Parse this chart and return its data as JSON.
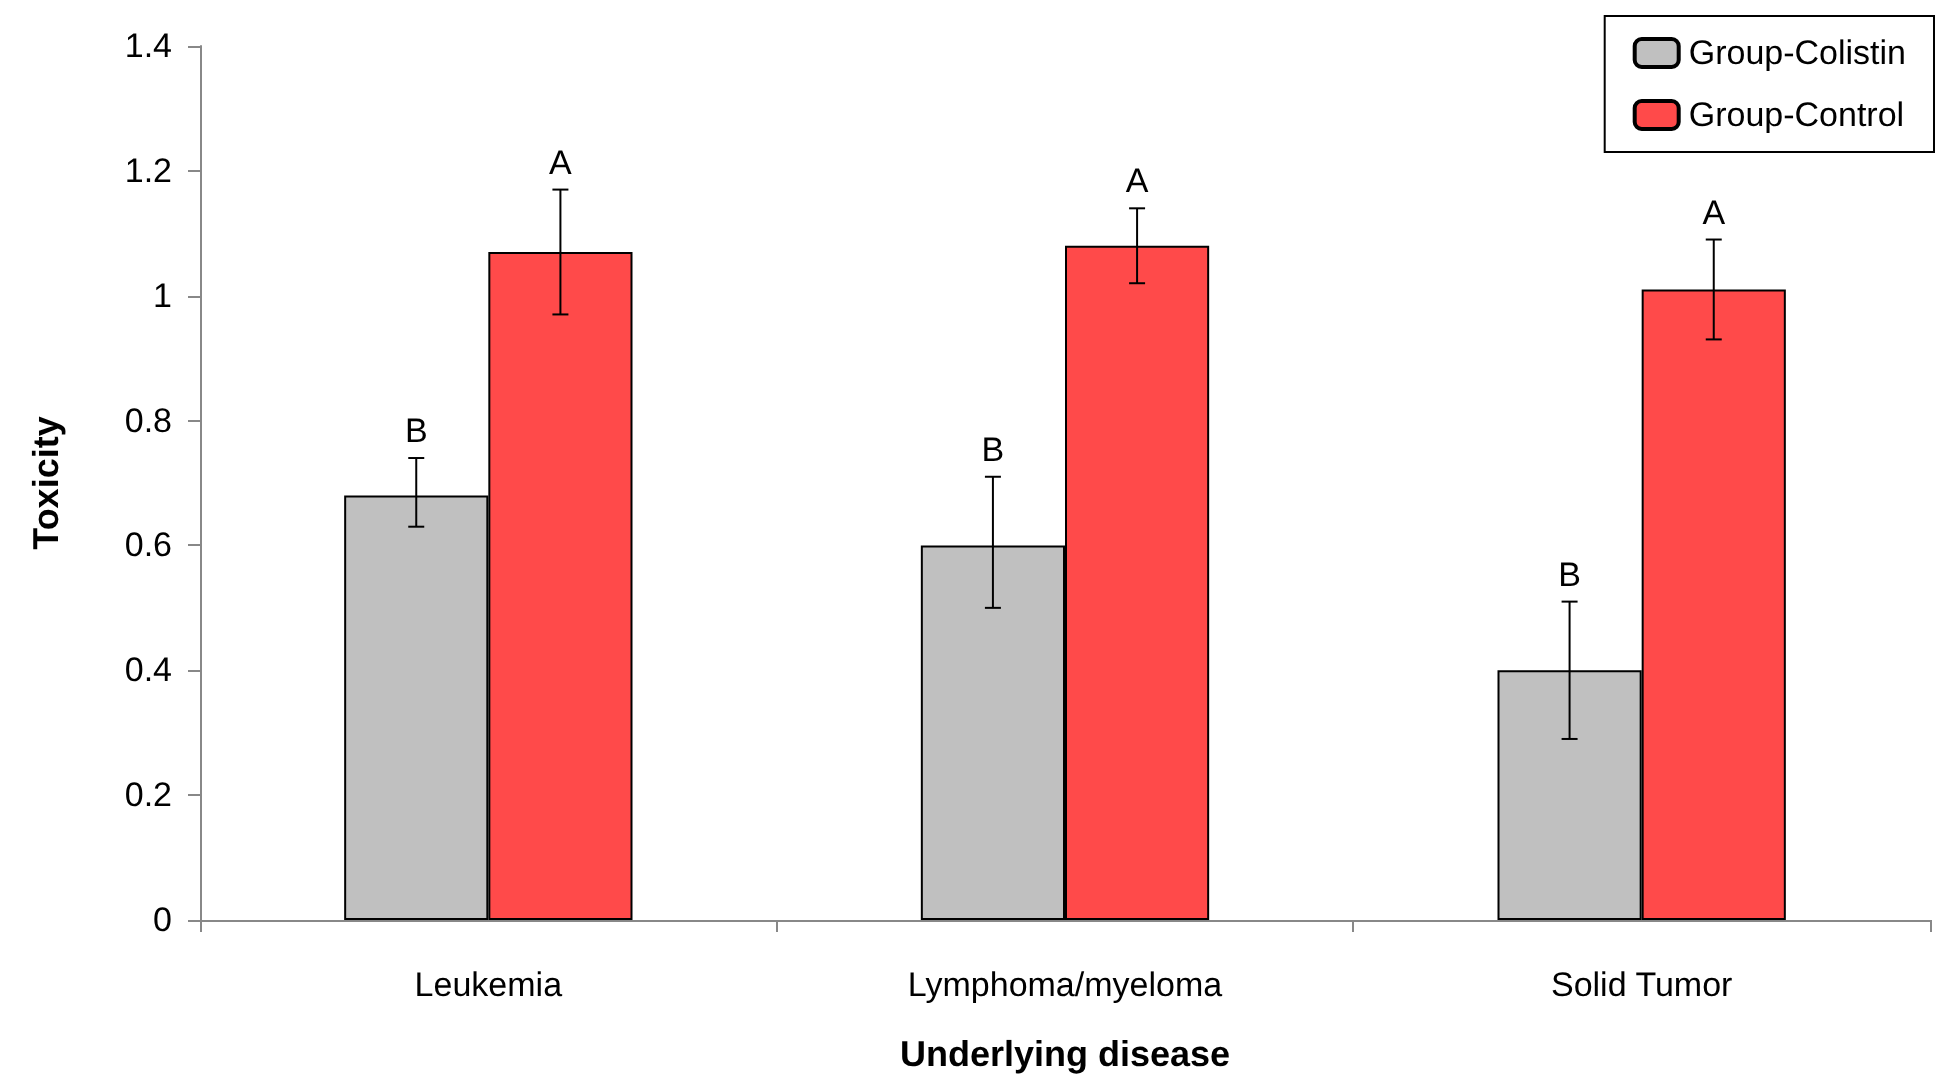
{
  "chart_data": {
    "type": "bar",
    "xlabel": "Underlying disease",
    "ylabel": "Toxicity",
    "categories": [
      "Leukemia",
      "Lymphoma/myeloma",
      "Solid Tumor"
    ],
    "series": [
      {
        "name": "Group-Colistin",
        "color": "#c0c0c0",
        "values": [
          0.68,
          0.6,
          0.4
        ],
        "value_labels": [
          "B",
          "B",
          "B"
        ],
        "errors": [
          [
            0.63,
            0.74
          ],
          [
            0.5,
            0.71
          ],
          [
            0.29,
            0.51
          ]
        ]
      },
      {
        "name": "Group-Control",
        "color": "#ff4a4a",
        "values": [
          1.07,
          1.08,
          1.01
        ],
        "value_labels": [
          "A",
          "A",
          "A"
        ],
        "errors": [
          [
            0.97,
            1.17
          ],
          [
            1.02,
            1.14
          ],
          [
            0.93,
            1.09
          ]
        ]
      }
    ],
    "ylim": [
      0,
      1.4
    ],
    "yticks": [
      0,
      0.2,
      0.4,
      0.6,
      0.8,
      1,
      1.2,
      1.4
    ],
    "grid": false,
    "legend": "top right"
  }
}
